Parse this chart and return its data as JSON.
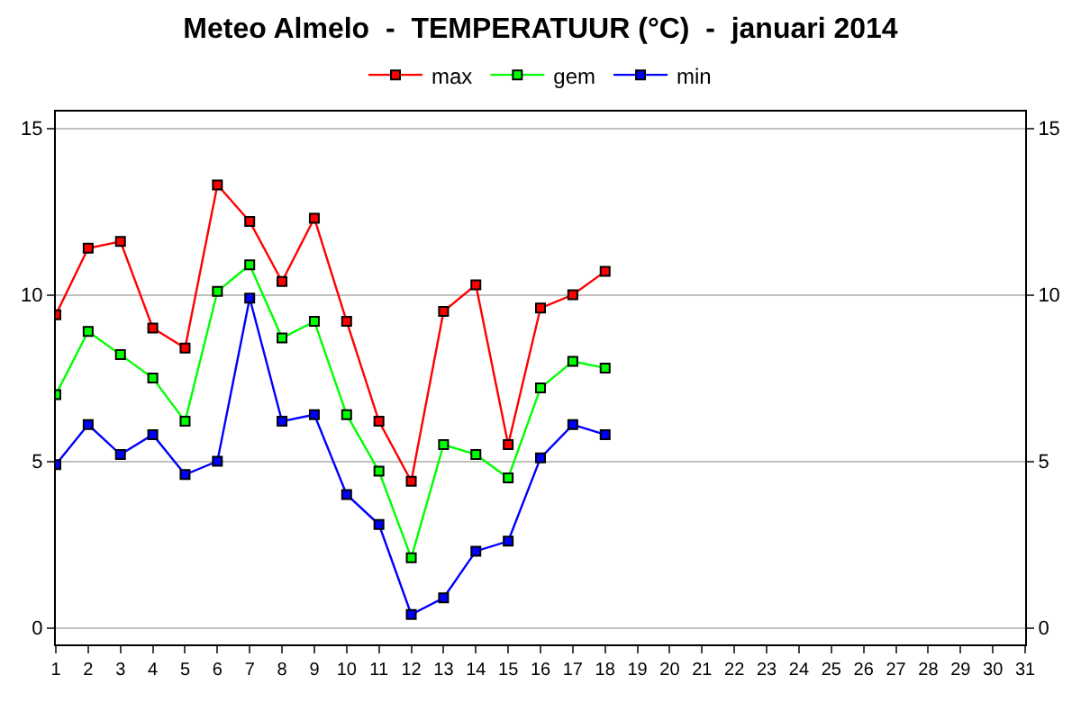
{
  "chart_data": {
    "type": "line",
    "title": "Meteo Almelo  -  TEMPERATUUR (°C)  -  januari 2014",
    "x": [
      1,
      2,
      3,
      4,
      5,
      6,
      7,
      8,
      9,
      10,
      11,
      12,
      13,
      14,
      15,
      16,
      17,
      18
    ],
    "series": [
      {
        "name": "max",
        "color": "#ff0000",
        "values": [
          9.4,
          11.4,
          11.6,
          9.0,
          8.4,
          13.3,
          12.2,
          10.4,
          12.3,
          9.2,
          6.2,
          4.4,
          9.5,
          10.3,
          5.5,
          9.6,
          10.0,
          10.7
        ]
      },
      {
        "name": "gem",
        "color": "#00ff00",
        "values": [
          7.0,
          8.9,
          8.2,
          7.5,
          6.2,
          10.1,
          10.9,
          8.7,
          9.2,
          6.4,
          4.7,
          2.1,
          5.5,
          5.2,
          4.5,
          7.2,
          8.0,
          7.8
        ]
      },
      {
        "name": "min",
        "color": "#0000ff",
        "values": [
          4.9,
          6.1,
          5.2,
          5.8,
          4.6,
          5.0,
          9.9,
          6.2,
          6.4,
          4.0,
          3.1,
          0.4,
          0.9,
          2.3,
          2.6,
          5.1,
          6.1,
          5.8
        ]
      }
    ],
    "xlim": [
      1,
      31
    ],
    "xticks": [
      1,
      2,
      3,
      4,
      5,
      6,
      7,
      8,
      9,
      10,
      11,
      12,
      13,
      14,
      15,
      16,
      17,
      18,
      19,
      20,
      21,
      22,
      23,
      24,
      25,
      26,
      27,
      28,
      29,
      30,
      31
    ],
    "ylim": [
      -0.5,
      15.5
    ],
    "yticks": [
      0,
      5,
      10,
      15
    ],
    "y2lim": [
      -0.5,
      15.5
    ],
    "y2ticks": [
      0,
      5,
      10,
      15
    ],
    "grid": "y",
    "legend": "top",
    "marker": "square",
    "line_style": "solid"
  }
}
